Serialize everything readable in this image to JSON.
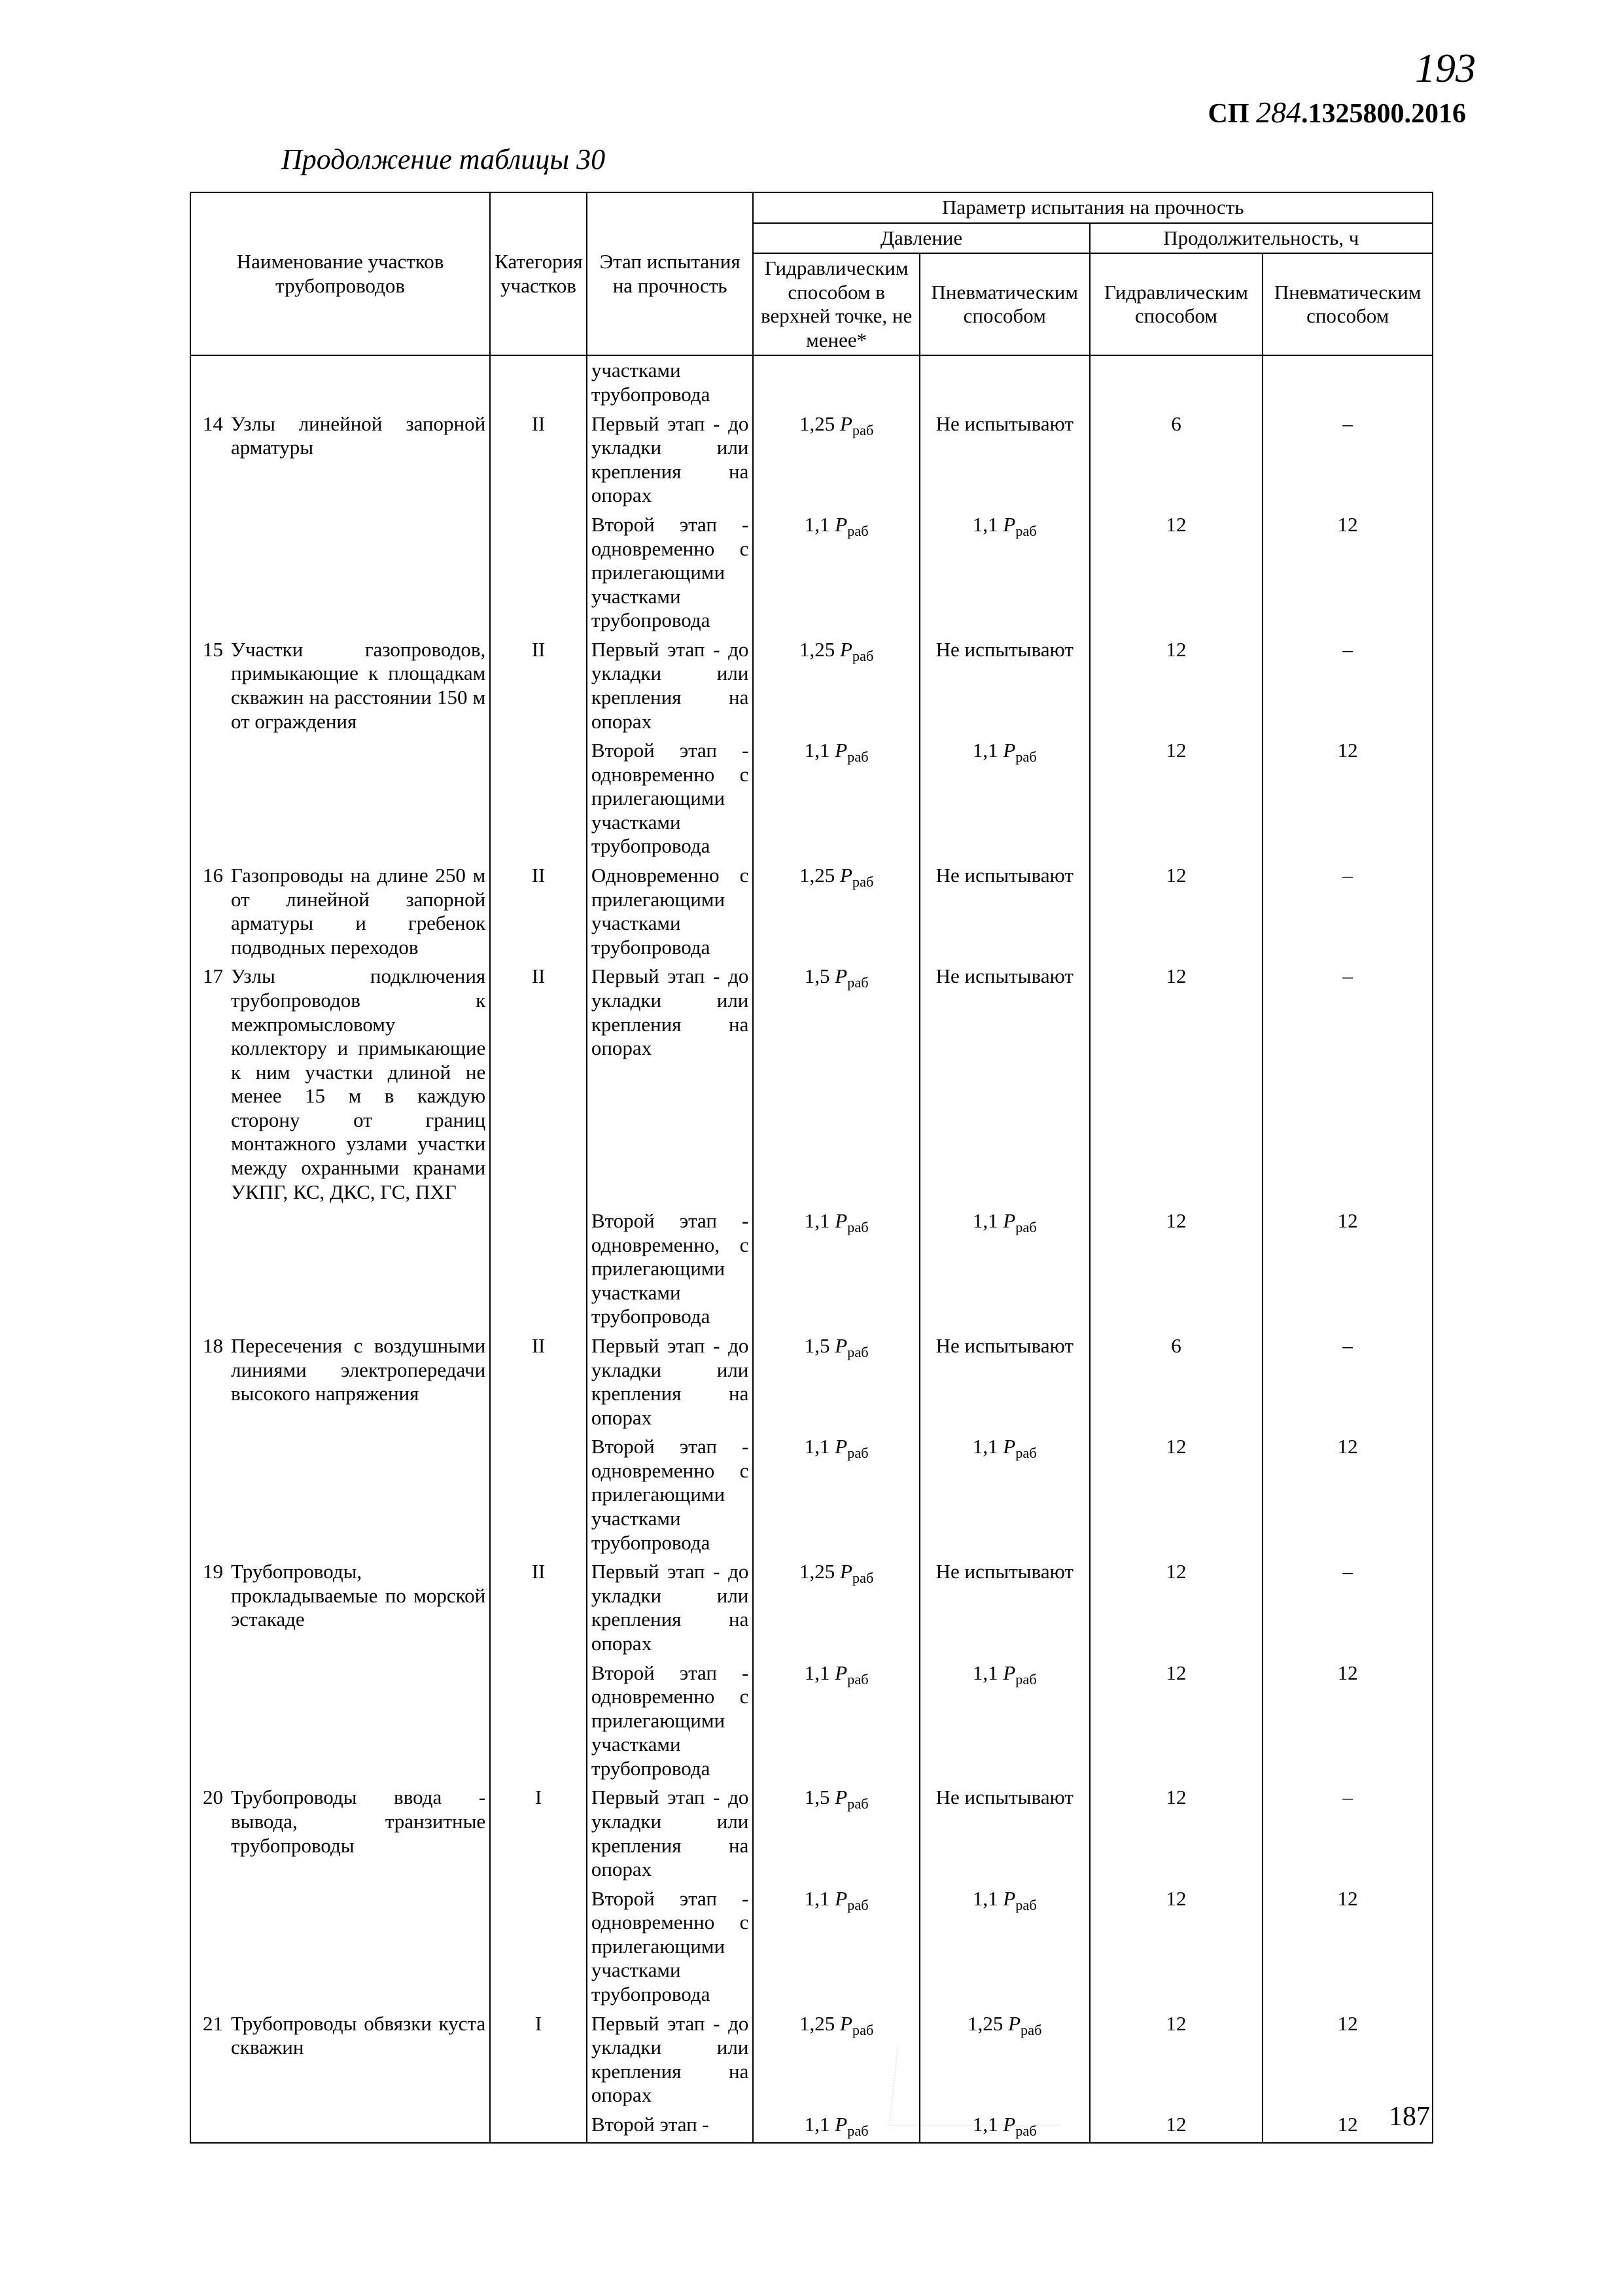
{
  "page_handwritten": "193",
  "doc_code_prefix": "СП",
  "doc_code_hand": "284",
  "doc_code_suffix": ".1325800.2016",
  "caption": "Продолжение таблицы 30",
  "footer_page": "187",
  "headers": {
    "name": "Наименование участков трубопроводов",
    "cat": "Категория участков",
    "stage": "Этап испытания на прочность",
    "param": "Параметр испытания на прочность",
    "pressure": "Давление",
    "duration": "Продолжительность, ч",
    "hydro_top": "Гидравлическим способом в верхней точке, не менее*",
    "pneu": "Пневматическим способом",
    "hydro": "Гидравлическим способом",
    "pneu2": "Пневматическим способом"
  },
  "phrases": {
    "stage1": "Первый этап - до укладки или крепления на опорах",
    "stage2": "Второй этап - одновременно с прилегающими участками трубопровода",
    "stage2a": "Второй этап - одновременно, с прилегающими участками трубопровода",
    "simul": "Одновременно с прилегающими участками трубопровода",
    "second_short": "Второй этап -",
    "carry": "участками трубопровода",
    "not_tested": "Не испытывают",
    "dash": "–"
  },
  "rows": [
    {
      "idx": "14",
      "name": "Узлы линейной запорной арматуры",
      "cat": "II",
      "sub": [
        {
          "stage_key": "stage1",
          "p1": "1,25",
          "p2_key": "not_tested",
          "d1": "6",
          "d2_key": "dash"
        },
        {
          "stage_key": "stage2",
          "p1": "1,1",
          "p2": "1,1",
          "d1": "12",
          "d2": "12"
        }
      ],
      "carry_before": true
    },
    {
      "idx": "15",
      "name": "Участки газопроводов, примыкающие к площадкам скважин на расстоянии 150 м от ограждения",
      "cat": "II",
      "sub": [
        {
          "stage_key": "stage1",
          "p1": "1,25",
          "p2_key": "not_tested",
          "d1": "12",
          "d2_key": "dash"
        },
        {
          "stage_key": "stage2",
          "p1": "1,1",
          "p2": "1,1",
          "d1": "12",
          "d2": "12"
        }
      ]
    },
    {
      "idx": "16",
      "name": "Газопроводы на длине 250 м от линейной запорной арматуры и гребенок подводных переходов",
      "cat": "II",
      "sub": [
        {
          "stage_key": "simul",
          "p1": "1,25",
          "p2_key": "not_tested",
          "d1": "12",
          "d2_key": "dash"
        }
      ]
    },
    {
      "idx": "17",
      "name": "Узлы подключения трубопроводов к межпромысловому коллектору и примыкающие к ним участки длиной не менее 15 м в каждую сторону от границ монтажного узлами участки между охранными кранами УКПГ, КС, ДКС, ГС, ПХГ",
      "cat": "II",
      "sub": [
        {
          "stage_key": "stage1",
          "p1": "1,5",
          "p2_key": "not_tested",
          "d1": "12",
          "d2_key": "dash"
        },
        {
          "stage_key": "stage2a",
          "p1": "1,1",
          "p2": "1,1",
          "d1": "12",
          "d2": "12"
        }
      ]
    },
    {
      "idx": "18",
      "name": "Пересечения с воздушными линиями электропередачи высокого напряжения",
      "cat": "II",
      "sub": [
        {
          "stage_key": "stage1",
          "p1": "1,5",
          "p2_key": "not_tested",
          "d1": "6",
          "d2_key": "dash"
        },
        {
          "stage_key": "stage2",
          "p1": "1,1",
          "p2": "1,1",
          "d1": "12",
          "d2": "12"
        }
      ]
    },
    {
      "idx": "19",
      "name": "Трубопроводы, прокладываемые по морской эстакаде",
      "cat": "II",
      "sub": [
        {
          "stage_key": "stage1",
          "p1": "1,25",
          "p2_key": "not_tested",
          "d1": "12",
          "d2_key": "dash"
        },
        {
          "stage_key": "stage2",
          "p1": "1,1",
          "p2": "1,1",
          "d1": "12",
          "d2": "12"
        }
      ]
    },
    {
      "idx": "20",
      "name": "Трубопроводы ввода - вывода, транзитные трубопроводы",
      "cat": "I",
      "sub": [
        {
          "stage_key": "stage1",
          "p1": "1,5",
          "p2_key": "not_tested",
          "d1": "12",
          "d2_key": "dash"
        },
        {
          "stage_key": "stage2",
          "p1": "1,1",
          "p2": "1,1",
          "d1": "12",
          "d2": "12"
        }
      ]
    },
    {
      "idx": "21",
      "name": "Трубопроводы обвязки куста скважин",
      "cat": "I",
      "sub": [
        {
          "stage_key": "stage1",
          "p1": "1,25",
          "p2": "1,25",
          "d1": "12",
          "d2": "12"
        },
        {
          "stage_key": "second_short",
          "p1": "1,1",
          "p2": "1,1",
          "d1": "12",
          "d2": "12"
        }
      ]
    }
  ]
}
